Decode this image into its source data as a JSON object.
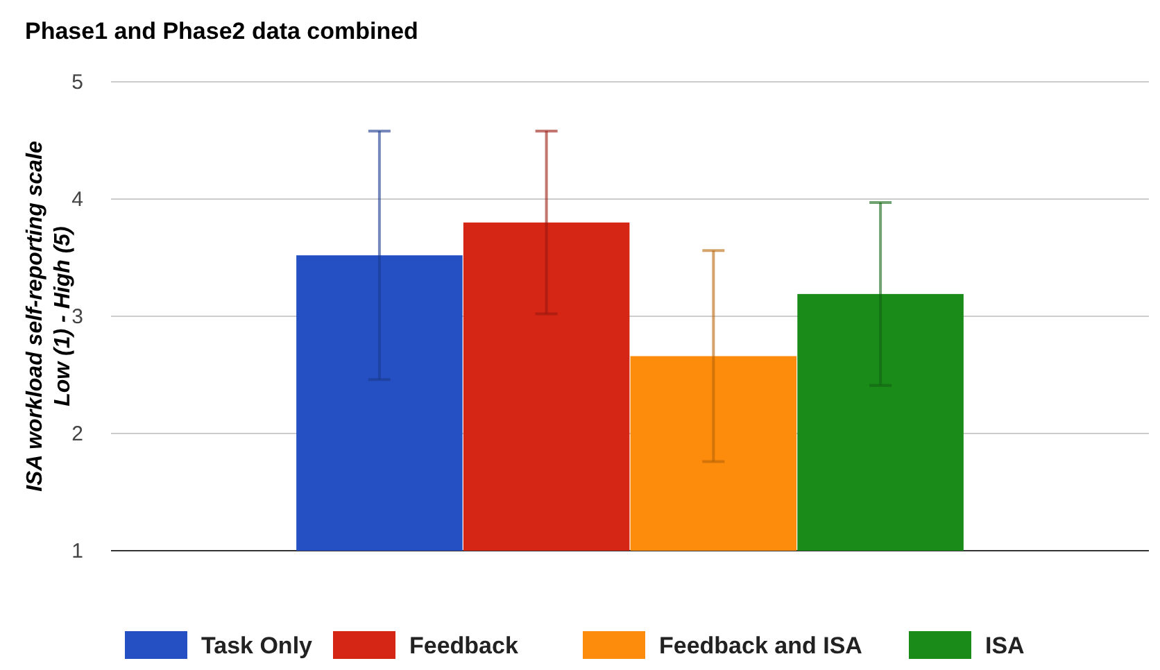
{
  "chart_data": {
    "type": "bar",
    "title": "Phase1 and Phase2 data combined",
    "ylabel": "ISA workload self-reporting scale\nLow (1) - High (5)",
    "categories": [
      null
    ],
    "series": [
      {
        "name": "Task Only",
        "color": "#2550c4",
        "values": [
          3.52
        ],
        "errors": [
          1.06
        ]
      },
      {
        "name": "Feedback",
        "color": "#d42515",
        "values": [
          3.8
        ],
        "errors": [
          0.78
        ]
      },
      {
        "name": "Feedback and ISA",
        "color": "#fd8b0c",
        "values": [
          2.66
        ],
        "errors": [
          0.9
        ]
      },
      {
        "name": "ISA",
        "color": "#1a8a19",
        "values": [
          3.19
        ],
        "errors": [
          0.78
        ]
      }
    ],
    "ylim": [
      1,
      5
    ],
    "yticks": [
      1,
      2,
      3,
      4,
      5
    ],
    "grid": "y",
    "legend": "bottom"
  }
}
